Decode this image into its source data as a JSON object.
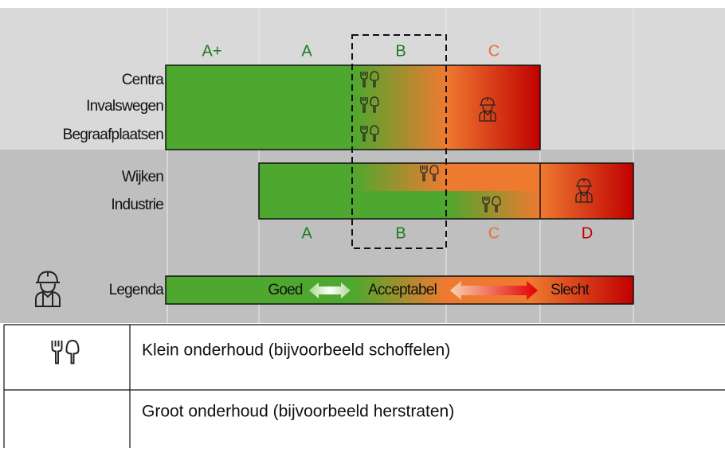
{
  "levels_top": [
    "A+",
    "A",
    "B",
    "C"
  ],
  "rows_top": [
    "Centra",
    "Invalswegen",
    "Begraafplaatsen"
  ],
  "rows_bottom": [
    "Wijken",
    "Industrie"
  ],
  "levels_bottom": [
    "A",
    "B",
    "C",
    "D"
  ],
  "legend": {
    "title": "Legenda",
    "good": "Goed",
    "acceptable": "Acceptabel",
    "bad": "Slecht"
  },
  "table": {
    "rows": [
      [
        "Klein onderhoud (bijvoorbeeld schoffelen)"
      ],
      [
        "Groot onderhoud (bijvoorbeeld herstraten)"
      ]
    ]
  }
}
